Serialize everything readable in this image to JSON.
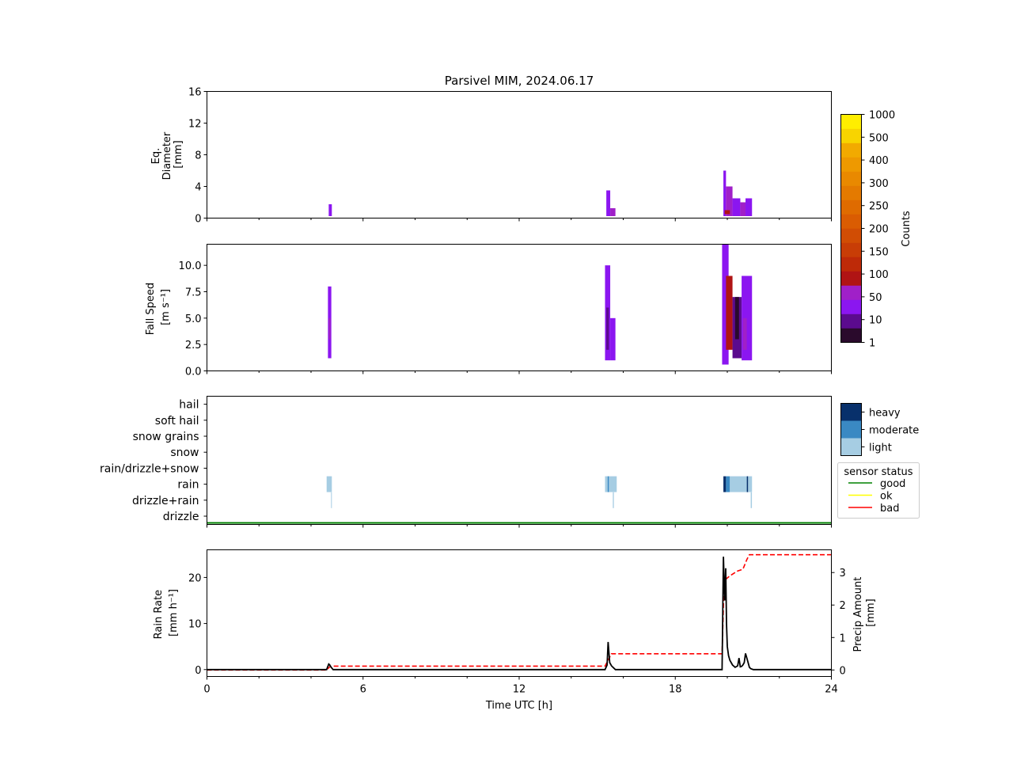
{
  "title": "Parsivel MIM, 2024.06.17",
  "colors": {
    "counts": [
      "#2a0a2c",
      "#5b0b8e",
      "#8b16f0",
      "#a020c8",
      "#b01414",
      "#be2a08",
      "#c83d06",
      "#d14d04",
      "#da5c02",
      "#df6b00",
      "#e47a00",
      "#e98900",
      "#ee9900",
      "#f2aa00",
      "#f8d400",
      "#ffee00"
    ],
    "classes": {
      "light": "#a6cde3",
      "moderate": "#3a89c3",
      "heavy": "#08306b"
    },
    "status": {
      "good": "#008000",
      "ok": "#ffff00",
      "bad": "#ff0000"
    },
    "rain_rate": "#000000",
    "precip_amount": "#ff0000"
  },
  "x_axis": {
    "label": "Time UTC [h]",
    "ticks": [
      "0",
      "6",
      "12",
      "18",
      "24"
    ]
  },
  "panels": {
    "diameter": {
      "ylabel": [
        "Eq.",
        "Diameter",
        "[mm]"
      ],
      "yticks": [
        "0",
        "4",
        "8",
        "12",
        "16"
      ]
    },
    "speed": {
      "ylabel": [
        "Fall Speed",
        "[m s⁻¹]"
      ],
      "yticks": [
        "0.0",
        "2.5",
        "5.0",
        "7.5",
        "10.0"
      ]
    },
    "precip_type": {
      "categories": [
        "drizzle",
        "drizzle+rain",
        "rain",
        "rain/drizzle+snow",
        "snow",
        "snow grains",
        "soft hail",
        "hail"
      ]
    },
    "rain": {
      "ylabel": [
        "Rain Rate",
        "[mm h⁻¹]"
      ],
      "yticks": [
        "0",
        "10",
        "20"
      ],
      "y2label": [
        "Precip Amount",
        "[mm]"
      ],
      "y2ticks": [
        "0",
        "1",
        "2",
        "3"
      ]
    }
  },
  "colorbar": {
    "label": "Counts",
    "ticks": [
      "1",
      "10",
      "50",
      "100",
      "150",
      "200",
      "250",
      "300",
      "400",
      "500",
      "1000"
    ]
  },
  "class_legend": {
    "labels": [
      "heavy",
      "moderate",
      "light"
    ]
  },
  "status_legend": {
    "title": "sensor status",
    "items": [
      "good",
      "ok",
      "bad"
    ]
  },
  "chart_data": [
    {
      "type": "heatmap",
      "name": "diameter",
      "xlim": [
        0,
        24
      ],
      "ylim": [
        0,
        16
      ],
      "cells": [
        {
          "x0": 4.68,
          "x1": 4.8,
          "y0": 0.25,
          "y1": 1.75,
          "level": 2
        },
        {
          "x0": 15.35,
          "x1": 15.5,
          "y0": 0.25,
          "y1": 3.5,
          "level": 2
        },
        {
          "x0": 15.5,
          "x1": 15.7,
          "y0": 0.25,
          "y1": 1.25,
          "level": 3
        },
        {
          "x0": 19.85,
          "x1": 19.95,
          "y0": 0.25,
          "y1": 6.0,
          "level": 2
        },
        {
          "x0": 19.95,
          "x1": 20.2,
          "y0": 0.25,
          "y1": 4.0,
          "level": 3
        },
        {
          "x0": 20.2,
          "x1": 20.5,
          "y0": 0.25,
          "y1": 2.5,
          "level": 2
        },
        {
          "x0": 20.5,
          "x1": 20.7,
          "y0": 0.25,
          "y1": 2.0,
          "level": 3
        },
        {
          "x0": 20.7,
          "x1": 20.95,
          "y0": 0.25,
          "y1": 2.5,
          "level": 2
        },
        {
          "x0": 19.9,
          "x1": 20.1,
          "y0": 0.5,
          "y1": 1.0,
          "level": 4
        }
      ]
    },
    {
      "type": "heatmap",
      "name": "fall_speed",
      "xlim": [
        0,
        24
      ],
      "ylim": [
        0,
        12
      ],
      "cells": [
        {
          "x0": 4.65,
          "x1": 4.78,
          "y0": 1.2,
          "y1": 8.0,
          "level": 2
        },
        {
          "x0": 4.68,
          "x1": 4.75,
          "y0": 3.0,
          "y1": 5.0,
          "level": 3
        },
        {
          "x0": 15.3,
          "x1": 15.5,
          "y0": 1.0,
          "y1": 10.0,
          "level": 2
        },
        {
          "x0": 15.5,
          "x1": 15.7,
          "y0": 1.0,
          "y1": 5.0,
          "level": 2
        },
        {
          "x0": 15.35,
          "x1": 15.45,
          "y0": 2.0,
          "y1": 6.0,
          "level": 1
        },
        {
          "x0": 19.8,
          "x1": 20.05,
          "y0": 0.6,
          "y1": 12.0,
          "level": 2
        },
        {
          "x0": 19.95,
          "x1": 20.2,
          "y0": 2.0,
          "y1": 9.0,
          "level": 4
        },
        {
          "x0": 20.2,
          "x1": 20.55,
          "y0": 1.2,
          "y1": 7.0,
          "level": 1
        },
        {
          "x0": 20.55,
          "x1": 20.95,
          "y0": 1.0,
          "y1": 9.0,
          "level": 2
        },
        {
          "x0": 20.6,
          "x1": 20.75,
          "y0": 2.0,
          "y1": 5.0,
          "level": 3
        },
        {
          "x0": 20.3,
          "x1": 20.45,
          "y0": 3.0,
          "y1": 7.0,
          "level": 0
        }
      ]
    },
    {
      "type": "heatmap",
      "name": "precip_type",
      "xlim": [
        0,
        24
      ],
      "categories": [
        "drizzle",
        "drizzle+rain",
        "rain",
        "rain/drizzle+snow",
        "snow",
        "snow grains",
        "soft hail",
        "hail"
      ],
      "bars": [
        {
          "x0": 4.6,
          "x1": 4.8,
          "category": "rain",
          "intensity": "light"
        },
        {
          "x0": 4.77,
          "x1": 4.8,
          "category": "drizzle+rain",
          "intensity": "light"
        },
        {
          "x0": 15.3,
          "x1": 15.4,
          "category": "rain",
          "intensity": "light"
        },
        {
          "x0": 15.4,
          "x1": 15.45,
          "category": "rain",
          "intensity": "moderate"
        },
        {
          "x0": 15.45,
          "x1": 15.75,
          "category": "rain",
          "intensity": "light"
        },
        {
          "x0": 15.6,
          "x1": 15.64,
          "category": "drizzle+rain",
          "intensity": "light"
        },
        {
          "x0": 19.85,
          "x1": 19.95,
          "category": "rain",
          "intensity": "heavy"
        },
        {
          "x0": 19.95,
          "x1": 20.1,
          "category": "rain",
          "intensity": "moderate"
        },
        {
          "x0": 20.1,
          "x1": 20.8,
          "category": "rain",
          "intensity": "light"
        },
        {
          "x0": 20.75,
          "x1": 20.8,
          "category": "rain",
          "intensity": "heavy"
        },
        {
          "x0": 20.8,
          "x1": 20.95,
          "category": "rain",
          "intensity": "light"
        },
        {
          "x0": 20.9,
          "x1": 20.95,
          "category": "drizzle+rain",
          "intensity": "light"
        }
      ],
      "sensor_status": [
        {
          "x0": 0,
          "x1": 24,
          "status": "good"
        }
      ]
    },
    {
      "type": "line",
      "name": "rain",
      "xlim": [
        0,
        24
      ],
      "ylim": [
        -1.5,
        26
      ],
      "y2lim": [
        -0.2,
        3.7
      ],
      "series": [
        {
          "axis": "left",
          "style": "solid",
          "x": [
            0,
            4.6,
            4.68,
            4.72,
            4.76,
            4.85,
            15.3,
            15.38,
            15.42,
            15.48,
            15.55,
            15.7,
            19.8,
            19.85,
            19.9,
            19.94,
            19.97,
            20.0,
            20.05,
            20.1,
            20.2,
            20.3,
            20.4,
            20.45,
            20.5,
            20.55,
            20.6,
            20.65,
            20.7,
            20.75,
            20.8,
            20.85,
            20.9,
            21.0,
            24
          ],
          "y": [
            0,
            0,
            1.2,
            1.0,
            0.6,
            0,
            0,
            1.0,
            6.0,
            1.5,
            0.8,
            0,
            0,
            24.5,
            15.0,
            22.0,
            10.0,
            5.0,
            3.0,
            2.0,
            1.0,
            0.5,
            0.8,
            2.5,
            0.6,
            0.7,
            1.0,
            1.5,
            3.5,
            2.5,
            1.5,
            0.5,
            0.2,
            0,
            0
          ]
        },
        {
          "axis": "right",
          "style": "dashed",
          "x": [
            0,
            4.6,
            4.72,
            4.8,
            15.3,
            15.45,
            15.55,
            19.8,
            19.87,
            19.95,
            20.1,
            20.4,
            20.6,
            20.75,
            20.85,
            24
          ],
          "y": [
            0,
            0,
            0.1,
            0.12,
            0.12,
            0.35,
            0.5,
            0.5,
            2.5,
            2.8,
            2.9,
            3.05,
            3.1,
            3.4,
            3.55,
            3.55
          ]
        }
      ]
    }
  ]
}
